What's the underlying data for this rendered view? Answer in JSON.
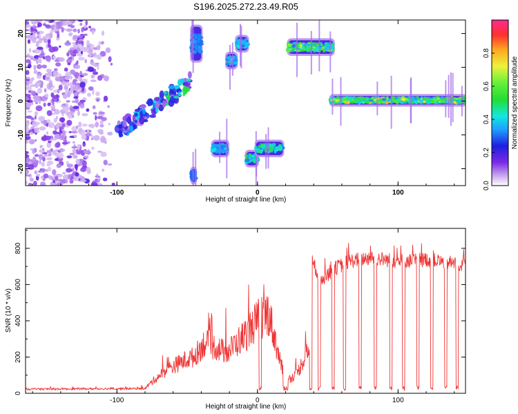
{
  "title": "S196.2025.272.23.49.R05",
  "chart_data": [
    {
      "type": "heatmap",
      "xlabel": "Height of straight line (km)",
      "ylabel": "Frequency (Hz)",
      "xlim": [
        -165,
        148
      ],
      "ylim": [
        -25,
        24
      ],
      "x_ticks": [
        -100,
        0,
        100
      ],
      "x_tick_labels": [
        "-100",
        "0",
        "100"
      ],
      "y_ticks": [
        -20,
        -10,
        0,
        10,
        20
      ],
      "y_tick_labels": [
        "-20",
        "-10",
        "0",
        "10",
        "20"
      ],
      "colorbar": {
        "label": "Normalized spectral amplitude",
        "range": [
          0,
          1
        ],
        "ticks": [
          0.0,
          0.2,
          0.4,
          0.6,
          0.8
        ],
        "tick_labels": [
          "0.0",
          "0.2",
          "0.4",
          "0.6",
          "0.8"
        ]
      },
      "grid": false,
      "features": [
        {
          "x0": -165,
          "x1": -100,
          "y0": -25,
          "y1": 24,
          "kind": "noise",
          "amp": 0.2
        },
        {
          "x0": -100,
          "x1": -48,
          "y0": -9,
          "y1": 7,
          "kind": "chirp",
          "amp": 0.55
        },
        {
          "x0": -47,
          "x1": -40,
          "y0": 12,
          "y1": 22,
          "kind": "blob",
          "amp": 0.35
        },
        {
          "x0": -47,
          "x1": -44,
          "y0": -24,
          "y1": -20,
          "kind": "blob",
          "amp": 0.3
        },
        {
          "x0": -32,
          "x1": -21,
          "y0": -16,
          "y1": -12,
          "kind": "blob",
          "amp": 0.45
        },
        {
          "x0": -22,
          "x1": -15,
          "y0": 10,
          "y1": 14,
          "kind": "blob",
          "amp": 0.45
        },
        {
          "x0": -15,
          "x1": -7,
          "y0": 15,
          "y1": 19,
          "kind": "blob",
          "amp": 0.45
        },
        {
          "x0": -8,
          "x1": 0,
          "y0": -19,
          "y1": -15,
          "kind": "blob",
          "amp": 0.6
        },
        {
          "x0": -1,
          "x1": 18,
          "y0": -16,
          "y1": -12,
          "kind": "blob",
          "amp": 0.65
        },
        {
          "x0": 22,
          "x1": 54,
          "y0": 14,
          "y1": 18,
          "kind": "band",
          "amp": 0.8
        },
        {
          "x0": 52,
          "x1": 148,
          "y0": -1,
          "y1": 1.5,
          "kind": "band",
          "amp": 0.85
        }
      ]
    },
    {
      "type": "line",
      "xlabel": "Height of straight line (km)",
      "ylabel": "SNR (10 * v/v)",
      "xlim": [
        -165,
        148
      ],
      "ylim": [
        0,
        910
      ],
      "x_ticks": [
        -100,
        0,
        100
      ],
      "x_tick_labels": [
        "-100",
        "0",
        "100"
      ],
      "y_ticks": [
        0,
        200,
        400,
        600,
        800
      ],
      "y_tick_labels": [
        "0",
        "200",
        "400",
        "600",
        "800"
      ],
      "grid": false,
      "color": "#ee3333",
      "segments": [
        {
          "x": -165,
          "y": 22
        },
        {
          "x": -80,
          "y": 25
        },
        {
          "x": -75,
          "y": 60
        },
        {
          "x": -65,
          "y": 120
        },
        {
          "x": -55,
          "y": 160
        },
        {
          "x": -45,
          "y": 190
        },
        {
          "x": -38,
          "y": 260
        },
        {
          "x": -30,
          "y": 240
        },
        {
          "x": -22,
          "y": 210
        },
        {
          "x": -15,
          "y": 260
        },
        {
          "x": -8,
          "y": 310
        },
        {
          "x": 0,
          "y": 380
        },
        {
          "x": 8,
          "y": 420
        },
        {
          "x": 15,
          "y": 200
        },
        {
          "x": 20,
          "y": 60
        },
        {
          "x": 28,
          "y": 100
        },
        {
          "x": 35,
          "y": 210
        },
        {
          "x": 37,
          "y": 750
        },
        {
          "x": 45,
          "y": 620
        },
        {
          "x": 55,
          "y": 680
        },
        {
          "x": 65,
          "y": 720
        },
        {
          "x": 80,
          "y": 740
        },
        {
          "x": 100,
          "y": 720
        },
        {
          "x": 120,
          "y": 730
        },
        {
          "x": 148,
          "y": 700
        }
      ],
      "dropouts": [
        2,
        19,
        21,
        38,
        44,
        54,
        62,
        73,
        84,
        95,
        104,
        114,
        124,
        134,
        142
      ]
    }
  ]
}
